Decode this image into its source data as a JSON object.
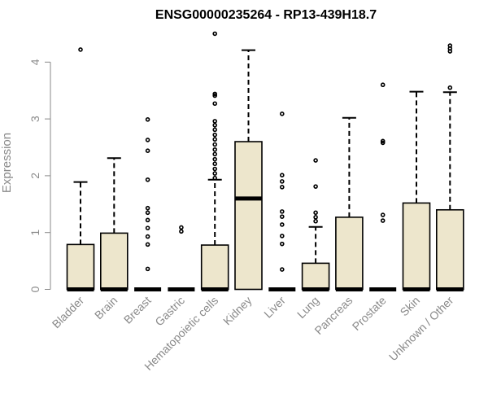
{
  "chart_data": {
    "type": "box",
    "title": "ENSG00000235264 - RP13-439H18.7",
    "xlabel": "",
    "ylabel": "Expression",
    "ylim": [
      0,
      4.5
    ],
    "yticks": [
      0,
      1,
      2,
      3,
      4
    ],
    "box_fill": "#ede6cc",
    "line_color": "#000000",
    "axis_text_color": "#8a8a8a",
    "categories": [
      "Bladder",
      "Brain",
      "Breast",
      "Gastric",
      "Hematopoietic cells",
      "Kidney",
      "Liver",
      "Lung",
      "Pancreas",
      "Prostate",
      "Skin",
      "Unknown / Other"
    ],
    "boxes": [
      {
        "q1": 0,
        "median": 0,
        "q3": 0.79,
        "whisker_low": 0,
        "whisker_high": 1.89,
        "outliers": [
          4.22
        ]
      },
      {
        "q1": 0,
        "median": 0,
        "q3": 0.99,
        "whisker_low": 0,
        "whisker_high": 2.31,
        "outliers": []
      },
      {
        "q1": 0,
        "median": 0,
        "q3": 0,
        "whisker_low": 0,
        "whisker_high": 0,
        "outliers": [
          0.36,
          0.79,
          0.93,
          1.08,
          1.22,
          1.35,
          1.43,
          1.93,
          2.44,
          2.63,
          2.99
        ]
      },
      {
        "q1": 0,
        "median": 0,
        "q3": 0,
        "whisker_low": 0,
        "whisker_high": 0,
        "outliers": [
          1.02,
          1.09
        ]
      },
      {
        "q1": 0,
        "median": 0,
        "q3": 0.78,
        "whisker_low": 0,
        "whisker_high": 1.93,
        "outliers": [
          1.96,
          2.04,
          2.12,
          2.21,
          2.29,
          2.38,
          2.46,
          2.55,
          2.64,
          2.72,
          2.81,
          2.89,
          2.96,
          3.27,
          3.41,
          3.44,
          4.5
        ]
      },
      {
        "q1": 0,
        "median": 1.6,
        "q3": 2.6,
        "whisker_low": 0,
        "whisker_high": 4.21,
        "outliers": []
      },
      {
        "q1": 0,
        "median": 0,
        "q3": 0,
        "whisker_low": 0,
        "whisker_high": 0,
        "outliers": [
          0.35,
          0.8,
          0.94,
          1.14,
          1.28,
          1.37,
          1.8,
          1.9,
          2.01,
          3.09
        ]
      },
      {
        "q1": 0,
        "median": 0,
        "q3": 0.46,
        "whisker_low": 0,
        "whisker_high": 1.1,
        "outliers": [
          1.2,
          1.27,
          1.35,
          1.81,
          2.27
        ]
      },
      {
        "q1": 0,
        "median": 0,
        "q3": 1.27,
        "whisker_low": 0,
        "whisker_high": 3.02,
        "outliers": []
      },
      {
        "q1": 0,
        "median": 0,
        "q3": 0,
        "whisker_low": 0,
        "whisker_high": 0,
        "outliers": [
          1.21,
          1.31,
          2.58,
          2.61,
          3.6
        ]
      },
      {
        "q1": 0,
        "median": 0,
        "q3": 1.52,
        "whisker_low": 0,
        "whisker_high": 3.48,
        "outliers": []
      },
      {
        "q1": 0,
        "median": 0,
        "q3": 1.4,
        "whisker_low": 0,
        "whisker_high": 3.47,
        "outliers": [
          3.55,
          4.19,
          4.24,
          4.29
        ]
      }
    ]
  }
}
